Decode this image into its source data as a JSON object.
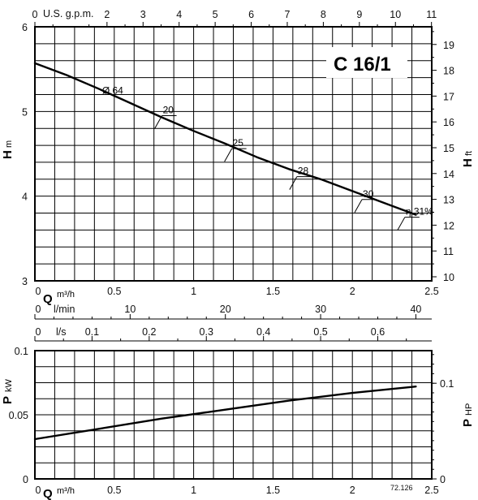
{
  "chart_data": [
    {
      "type": "line",
      "title": "C 16/1",
      "ylabel": "H",
      "ylabel_unit": "m",
      "y2label": "H",
      "y2label_unit": "ft",
      "xlabel": "Q",
      "xlabel_unit": "m³/h",
      "xlim": [
        0,
        2.5
      ],
      "ylim": [
        3,
        6
      ],
      "y2lim": [
        9.84,
        19.69
      ],
      "x_ticks": [
        "0",
        "0.5",
        "1",
        "1.5",
        "2",
        "2.5"
      ],
      "y_ticks": [
        "3",
        "4",
        "5",
        "6"
      ],
      "y2_ticks": [
        "10",
        "11",
        "12",
        "13",
        "14",
        "15",
        "16",
        "17",
        "18",
        "19"
      ],
      "top_axis": {
        "label": "U.S. g.p.m.",
        "ticks": [
          "0",
          "2",
          "3",
          "4",
          "5",
          "6",
          "7",
          "8",
          "9",
          "10",
          "11"
        ]
      },
      "lmin_axis": {
        "label": "l/min",
        "ticks": [
          "0",
          "10",
          "20",
          "30",
          "40"
        ]
      },
      "ls_axis": {
        "label": "l/s",
        "ticks": [
          "0",
          "0.1",
          "0.2",
          "0.3",
          "0.4",
          "0.5",
          "0.6"
        ]
      },
      "grid": true,
      "series": [
        {
          "name": "Ø 64",
          "x": [
            0,
            0.2,
            0.4,
            0.6,
            0.8,
            1.0,
            1.2,
            1.4,
            1.6,
            1.8,
            2.0,
            2.2,
            2.4
          ],
          "y": [
            5.57,
            5.43,
            5.27,
            5.1,
            4.93,
            4.77,
            4.62,
            4.46,
            4.32,
            4.2,
            4.06,
            3.92,
            3.78
          ]
        }
      ],
      "annotations": [
        {
          "text": "Ø 64",
          "x": 0.49,
          "y": 5.25
        },
        {
          "text": "20",
          "x": 0.78,
          "y": 4.97
        },
        {
          "text": "25",
          "x": 1.22,
          "y": 4.58
        },
        {
          "text": "28",
          "x": 1.63,
          "y": 4.25
        },
        {
          "text": "30",
          "x": 2.04,
          "y": 3.98
        },
        {
          "text": "η 31%",
          "x": 2.31,
          "y": 3.77
        }
      ]
    },
    {
      "type": "line",
      "ylabel": "P",
      "ylabel_unit": "kW",
      "y2label": "P",
      "y2label_unit": "HP",
      "xlabel": "Q",
      "xlabel_unit": "m³/h",
      "xlim": [
        0,
        2.5
      ],
      "ylim": [
        0,
        0.1
      ],
      "x_ticks": [
        "0",
        "0.5",
        "1",
        "1.5",
        "2",
        "2.5"
      ],
      "y_ticks": [
        "0",
        "0.05",
        "0.1"
      ],
      "y2_ticks": [
        "0",
        "0.1"
      ],
      "grid": true,
      "series": [
        {
          "x": [
            0,
            0.4,
            0.8,
            1.2,
            1.6,
            2.0,
            2.4
          ],
          "y": [
            0.031,
            0.039,
            0.047,
            0.054,
            0.061,
            0.067,
            0.072
          ]
        }
      ]
    }
  ],
  "footer_code": "72.126"
}
